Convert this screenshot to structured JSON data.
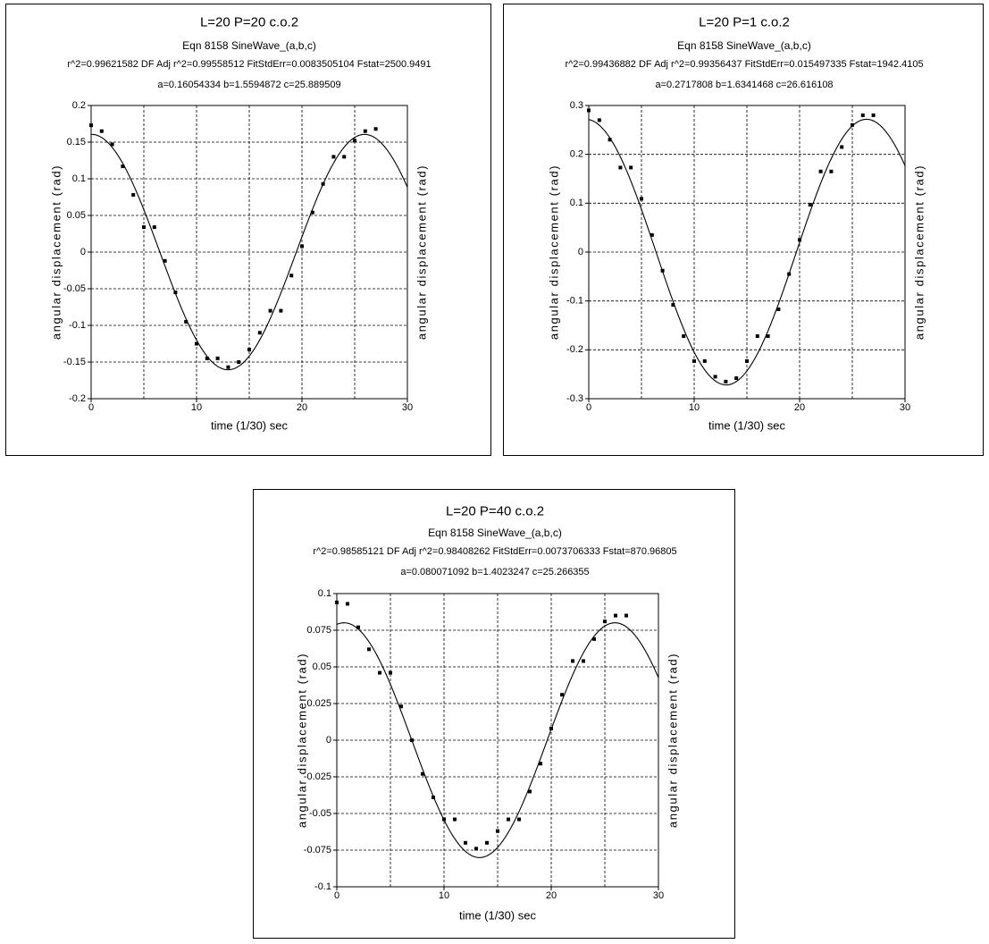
{
  "chart_data": [
    {
      "type": "scatter",
      "title": "L=20 P=20 c.o.2",
      "subtitle": "Eqn 8158  SineWave_(a,b,c)",
      "stats": "r^2=0.99621582  DF Adj r^2=0.99558512  FitStdErr=0.0083505104  Fstat=2500.9491",
      "params": "a=0.16054334 b=1.5594872 c=25.889509",
      "xlabel": "time    (1/30) sec",
      "ylabel": "angular displacement     (rad)",
      "ylabel_right": "angular displacement     (rad)",
      "xlim": [
        0,
        30
      ],
      "ylim": [
        -0.2,
        0.2
      ],
      "xticks": [
        0,
        10,
        20,
        30
      ],
      "xtick_labels": [
        "0",
        "10",
        "20",
        "30"
      ],
      "yticks": [
        -0.2,
        -0.15,
        -0.1,
        -0.05,
        0,
        0.05,
        0.1,
        0.15,
        0.2
      ],
      "ytick_labels": [
        "-0.2",
        "-0.15",
        "-0.1",
        "-0.05",
        "0",
        "0.05",
        "0.1",
        "0.15",
        "0.2"
      ],
      "xgrid": [
        5,
        10,
        15,
        20,
        25
      ],
      "fit": {
        "a": 0.16054334,
        "b": 1.5594872,
        "c": 25.889509
      },
      "points": {
        "x": [
          0,
          1,
          2,
          3,
          4,
          5,
          6,
          7,
          8,
          9,
          10,
          11,
          12,
          13,
          14,
          15,
          16,
          17,
          18,
          19,
          20,
          21,
          22,
          23,
          24,
          25,
          26,
          27
        ],
        "y": [
          0.173,
          0.165,
          0.147,
          0.117,
          0.078,
          0.034,
          0.034,
          -0.012,
          -0.055,
          -0.095,
          -0.125,
          -0.145,
          -0.145,
          -0.157,
          -0.15,
          -0.133,
          -0.11,
          -0.08,
          -0.08,
          -0.032,
          0.008,
          0.054,
          0.093,
          0.13,
          0.13,
          0.152,
          0.165,
          0.168
        ]
      }
    },
    {
      "type": "scatter",
      "title": "L=20 P=1 c.o.2",
      "subtitle": "Eqn 8158  SineWave_(a,b,c)",
      "stats": "r^2=0.99436882  DF Adj r^2=0.99356437  FitStdErr=0.015497335  Fstat=1942.4105",
      "params": "a=0.2717808 b=1.6341468 c=26.616108",
      "xlabel": "time    (1/30) sec",
      "ylabel": "angular displacement     (rad)",
      "ylabel_right": "angular displacement     (rad)",
      "xlim": [
        0,
        30
      ],
      "ylim": [
        -0.3,
        0.3
      ],
      "xticks": [
        0,
        10,
        20,
        30
      ],
      "xtick_labels": [
        "0",
        "10",
        "20",
        "30"
      ],
      "yticks": [
        -0.3,
        -0.2,
        -0.1,
        0,
        0.1,
        0.2,
        0.3
      ],
      "ytick_labels": [
        "-0.3",
        "-0.2",
        "-0.1",
        "0",
        "0.1",
        "0.2",
        "0.3"
      ],
      "xgrid": [
        5,
        10,
        15,
        20,
        25
      ],
      "fit": {
        "a": 0.2717808,
        "b": 1.6341468,
        "c": 26.616108
      },
      "points": {
        "x": [
          0,
          1,
          2,
          3,
          4,
          5,
          6,
          7,
          8,
          9,
          10,
          11,
          12,
          13,
          14,
          15,
          16,
          17,
          18,
          19,
          20,
          21,
          22,
          23,
          24,
          25,
          26,
          27
        ],
        "y": [
          0.29,
          0.27,
          0.23,
          0.173,
          0.173,
          0.109,
          0.035,
          -0.038,
          -0.108,
          -0.172,
          -0.223,
          -0.223,
          -0.255,
          -0.265,
          -0.258,
          -0.223,
          -0.172,
          -0.172,
          -0.117,
          -0.045,
          0.025,
          0.097,
          0.165,
          0.165,
          0.215,
          0.26,
          0.28,
          0.28
        ]
      }
    },
    {
      "type": "scatter",
      "title": "L=20 P=40 c.o.2",
      "subtitle": "Eqn 8158  SineWave_(a,b,c)",
      "stats": "r^2=0.98585121  DF Adj r^2=0.98408262  FitStdErr=0.0073706333  Fstat=870.96805",
      "params": "a=0.080071092 b=1.4023247 c=25.266355",
      "xlabel": "time    (1/30) sec",
      "ylabel": "angular displacement     (rad)",
      "ylabel_right": "angular displacement     (rad)",
      "xlim": [
        0,
        30
      ],
      "ylim": [
        -0.1,
        0.1
      ],
      "xticks": [
        0,
        10,
        20,
        30
      ],
      "xtick_labels": [
        "0",
        "10",
        "20",
        "30"
      ],
      "yticks": [
        -0.1,
        -0.075,
        -0.05,
        -0.025,
        0,
        0.025,
        0.05,
        0.075,
        0.1
      ],
      "ytick_labels": [
        "-0.1",
        "-0.075",
        "-0.05",
        "-0.025",
        "0",
        "0.025",
        "0.05",
        "0.075",
        "0.1"
      ],
      "xgrid": [
        5,
        10,
        15,
        20,
        25
      ],
      "fit": {
        "a": 0.080071092,
        "b": 1.4023247,
        "c": 25.266355
      },
      "points": {
        "x": [
          0,
          1,
          2,
          3,
          4,
          5,
          6,
          7,
          8,
          9,
          10,
          11,
          12,
          13,
          14,
          15,
          16,
          17,
          18,
          19,
          20,
          21,
          22,
          23,
          24,
          25,
          26,
          27
        ],
        "y": [
          0.094,
          0.093,
          0.077,
          0.062,
          0.046,
          0.046,
          0.023,
          0.0,
          -0.023,
          -0.039,
          -0.054,
          -0.054,
          -0.07,
          -0.074,
          -0.07,
          -0.062,
          -0.054,
          -0.054,
          -0.035,
          -0.016,
          0.008,
          0.031,
          0.054,
          0.054,
          0.069,
          0.081,
          0.085,
          0.085
        ]
      }
    }
  ]
}
